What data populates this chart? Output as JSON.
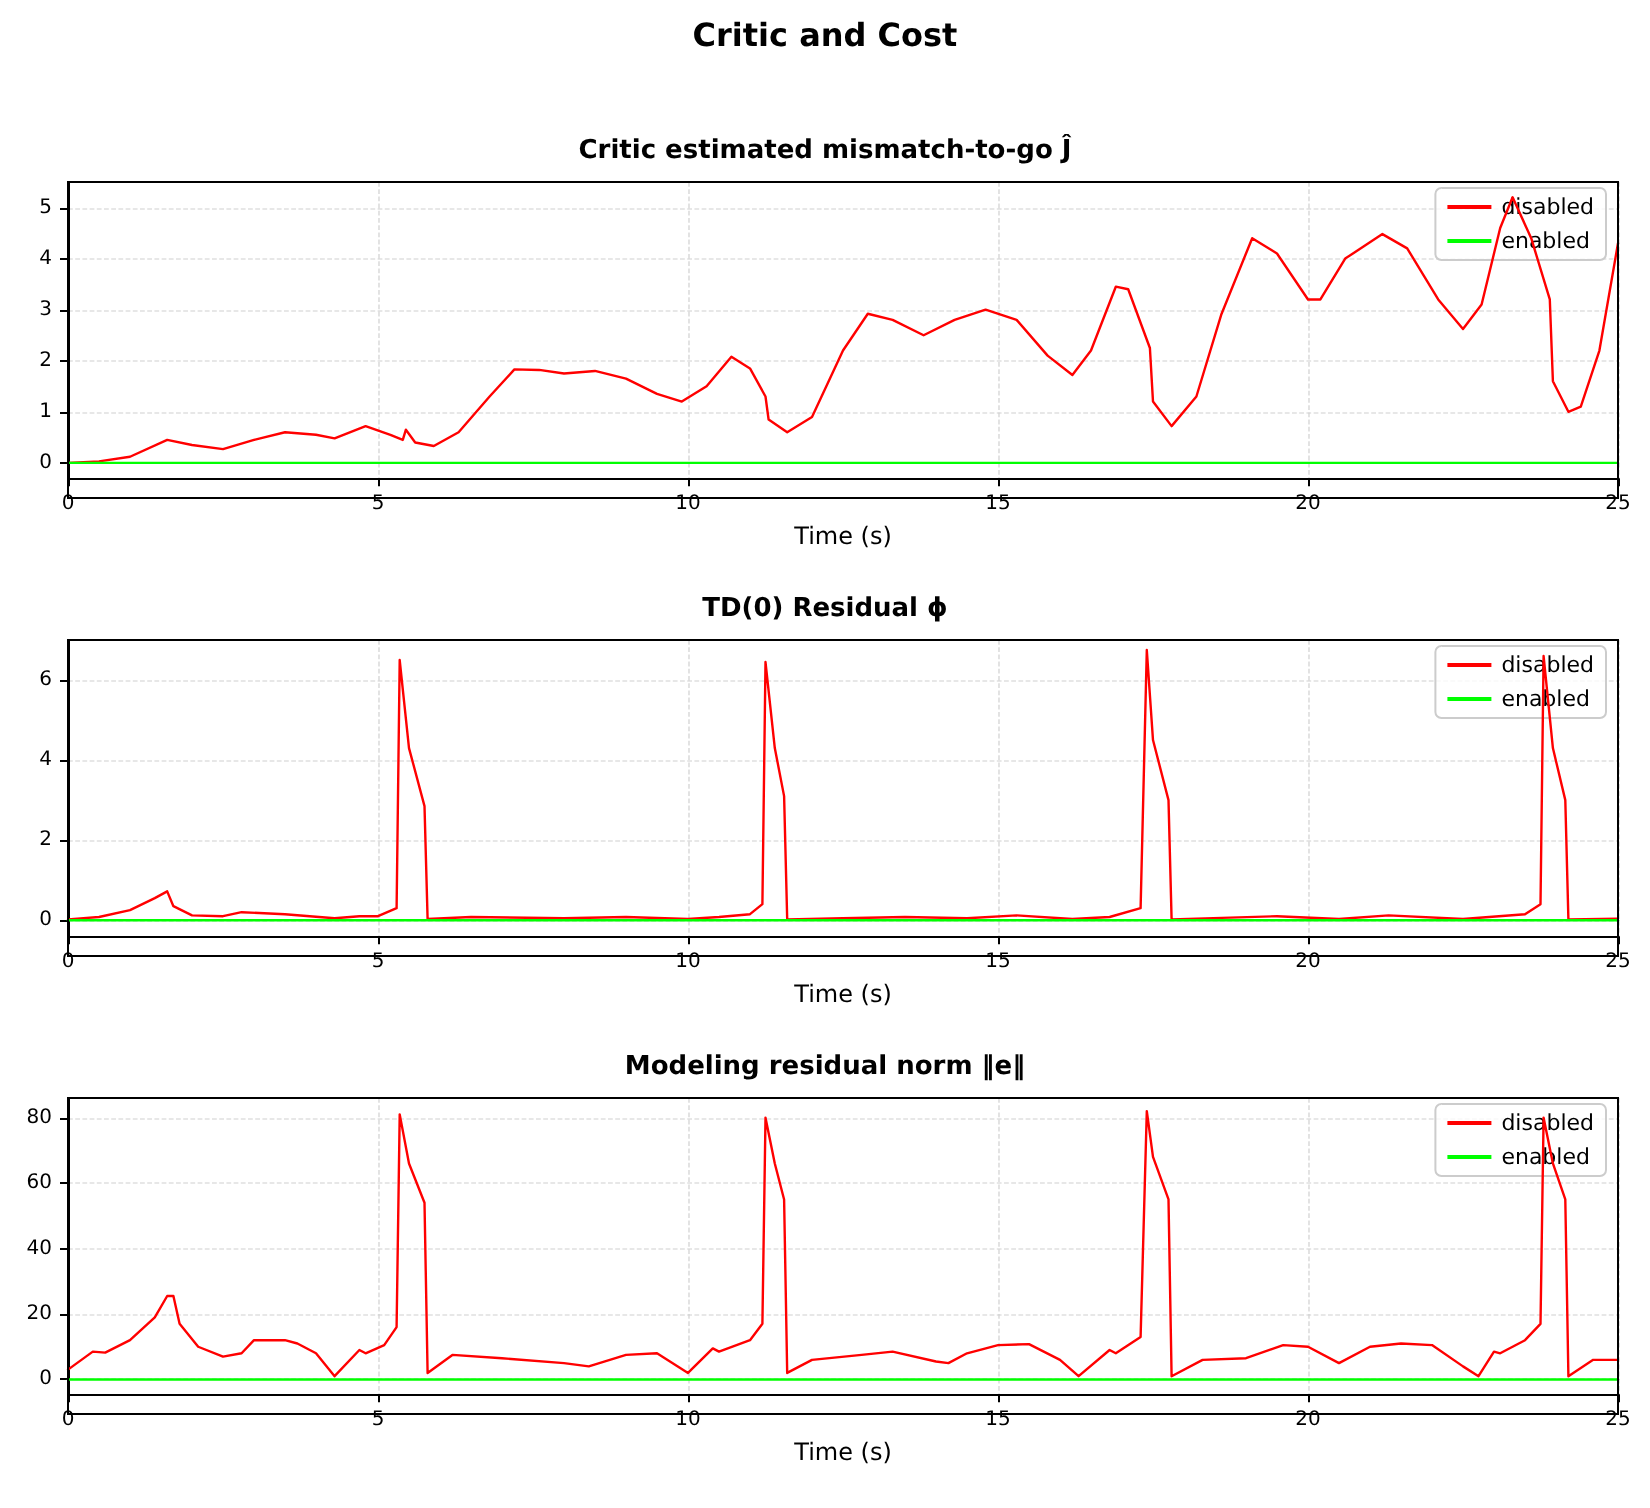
{
  "chart_data": [
    {
      "type": "line",
      "title": "Critic estimated mismatch-to-go Ĵ",
      "annotations": [
        "Critic and Cost"
      ],
      "xlabel": "Time (s)",
      "xlim": [
        0,
        25
      ],
      "xticks": [
        0,
        5,
        10,
        15,
        20,
        25
      ],
      "ylim": [
        -0.3,
        5.5
      ],
      "yticks": [
        0,
        1,
        2,
        3,
        4,
        5
      ],
      "grid": true,
      "legend": "top right",
      "marker": "none",
      "line_style": "solid",
      "series": [
        {
          "name": "disabled",
          "color": "#ff0000",
          "x": [
            0,
            0.5,
            1,
            1.6,
            2,
            2.5,
            3,
            3.5,
            4,
            4.3,
            4.8,
            5.2,
            5.4,
            5.45,
            5.6,
            5.9,
            6.3,
            6.8,
            7.2,
            7.6,
            8,
            8.5,
            9,
            9.5,
            9.9,
            10.3,
            10.7,
            11,
            11.25,
            11.3,
            11.6,
            12,
            12.5,
            12.9,
            13.3,
            13.8,
            14.3,
            14.8,
            15.3,
            15.8,
            16.2,
            16.5,
            16.9,
            17.1,
            17.45,
            17.5,
            17.8,
            18.2,
            18.6,
            19.1,
            19.5,
            20,
            20.2,
            20.6,
            21.2,
            21.6,
            22.1,
            22.5,
            22.8,
            23.1,
            23.3,
            23.6,
            23.9,
            23.95,
            24.2,
            24.4,
            24.7,
            25
          ],
          "values": [
            0,
            0.03,
            0.12,
            0.45,
            0.35,
            0.27,
            0.45,
            0.6,
            0.55,
            0.48,
            0.72,
            0.55,
            0.45,
            0.65,
            0.4,
            0.33,
            0.6,
            1.3,
            1.83,
            1.82,
            1.75,
            1.8,
            1.65,
            1.35,
            1.2,
            1.5,
            2.08,
            1.85,
            1.3,
            0.85,
            0.6,
            0.9,
            2.2,
            2.92,
            2.8,
            2.5,
            2.8,
            3.0,
            2.8,
            2.1,
            1.72,
            2.2,
            3.45,
            3.4,
            2.25,
            1.2,
            0.72,
            1.3,
            2.9,
            4.4,
            4.1,
            3.2,
            3.2,
            4.0,
            4.48,
            4.2,
            3.2,
            2.62,
            3.1,
            4.6,
            5.2,
            4.4,
            3.2,
            1.6,
            1.0,
            1.1,
            2.2,
            4.3
          ]
        },
        {
          "name": "enabled",
          "color": "#00ff00",
          "x": [
            0,
            25
          ],
          "values": [
            0,
            0
          ]
        }
      ]
    },
    {
      "type": "line",
      "title": "TD(0) Residual ϕ",
      "xlabel": "Time (s)",
      "xlim": [
        0,
        25
      ],
      "xticks": [
        0,
        5,
        10,
        15,
        20,
        25
      ],
      "ylim": [
        -0.4,
        7.0
      ],
      "yticks": [
        0,
        2,
        4,
        6
      ],
      "grid": true,
      "legend": "top right",
      "marker": "none",
      "line_style": "solid",
      "series": [
        {
          "name": "disabled",
          "color": "#ff0000",
          "x": [
            0,
            0.5,
            1,
            1.4,
            1.6,
            1.7,
            2,
            2.5,
            2.8,
            3.5,
            4.3,
            4.7,
            5,
            5.3,
            5.35,
            5.5,
            5.75,
            5.8,
            6.5,
            8,
            9,
            10,
            10.5,
            11,
            11.2,
            11.25,
            11.4,
            11.55,
            11.6,
            12.5,
            13.5,
            14.5,
            15.3,
            16.2,
            16.8,
            17.3,
            17.4,
            17.5,
            17.75,
            17.8,
            19.5,
            20.5,
            21.3,
            22.5,
            23.5,
            23.75,
            23.8,
            23.95,
            24.15,
            24.2,
            25
          ],
          "values": [
            0.02,
            0.08,
            0.25,
            0.55,
            0.72,
            0.35,
            0.12,
            0.1,
            0.2,
            0.15,
            0.05,
            0.1,
            0.1,
            0.3,
            6.5,
            4.3,
            2.85,
            0.03,
            0.08,
            0.05,
            0.08,
            0.03,
            0.08,
            0.15,
            0.4,
            6.45,
            4.3,
            3.1,
            0.02,
            0.05,
            0.08,
            0.05,
            0.12,
            0.03,
            0.08,
            0.3,
            6.75,
            4.5,
            3.0,
            0.02,
            0.1,
            0.03,
            0.12,
            0.03,
            0.15,
            0.4,
            6.6,
            4.3,
            3.0,
            0.02,
            0.04
          ]
        },
        {
          "name": "enabled",
          "color": "#00ff00",
          "x": [
            0,
            25
          ],
          "values": [
            0,
            0
          ]
        }
      ]
    },
    {
      "type": "line",
      "title": "Modeling residual norm ‖e‖",
      "xlabel": "Time (s)",
      "xlim": [
        0,
        25
      ],
      "xticks": [
        0,
        5,
        10,
        15,
        20,
        25
      ],
      "ylim": [
        -4.5,
        86
      ],
      "yticks": [
        0,
        20,
        40,
        60,
        80
      ],
      "grid": true,
      "legend": "top right",
      "marker": "none",
      "line_style": "solid",
      "series": [
        {
          "name": "disabled",
          "color": "#ff0000",
          "x": [
            0,
            0.4,
            0.6,
            1,
            1.4,
            1.6,
            1.7,
            1.8,
            2.1,
            2.5,
            2.8,
            3,
            3.5,
            3.7,
            4,
            4.3,
            4.7,
            4.8,
            5.1,
            5.3,
            5.35,
            5.5,
            5.75,
            5.8,
            6.2,
            7,
            8,
            8.4,
            9,
            9.5,
            10,
            10.4,
            10.5,
            11,
            11.2,
            11.25,
            11.4,
            11.55,
            11.6,
            12,
            12.8,
            13.3,
            14,
            14.2,
            14.5,
            15,
            15.5,
            16,
            16.3,
            16.8,
            16.9,
            17.3,
            17.4,
            17.5,
            17.75,
            17.8,
            18.3,
            19,
            19.6,
            20,
            20.5,
            21,
            21.5,
            22,
            22.5,
            22.75,
            23,
            23.1,
            23.5,
            23.75,
            23.8,
            23.95,
            24.15,
            24.2,
            24.6,
            25
          ],
          "values": [
            3,
            8.5,
            8.2,
            12,
            19,
            25.5,
            25.5,
            17,
            10,
            7,
            8,
            12,
            12,
            11,
            8,
            1,
            9,
            8,
            10.5,
            16,
            81,
            66,
            54,
            2,
            7.5,
            6.5,
            5,
            4,
            7.5,
            8,
            2,
            9.5,
            8.5,
            12,
            17,
            80,
            66,
            55,
            2,
            6,
            7.5,
            8.5,
            5.5,
            5,
            8,
            10.5,
            10.8,
            6,
            1,
            9,
            8,
            13,
            82,
            68,
            55,
            1,
            6,
            6.5,
            10.5,
            10,
            5,
            10,
            11,
            10.5,
            4,
            1,
            8.5,
            8,
            12,
            17,
            80,
            66,
            55,
            1,
            6,
            6
          ]
        },
        {
          "name": "enabled",
          "color": "#00ff00",
          "x": [
            0,
            25
          ],
          "values": [
            0,
            0
          ]
        }
      ]
    }
  ]
}
